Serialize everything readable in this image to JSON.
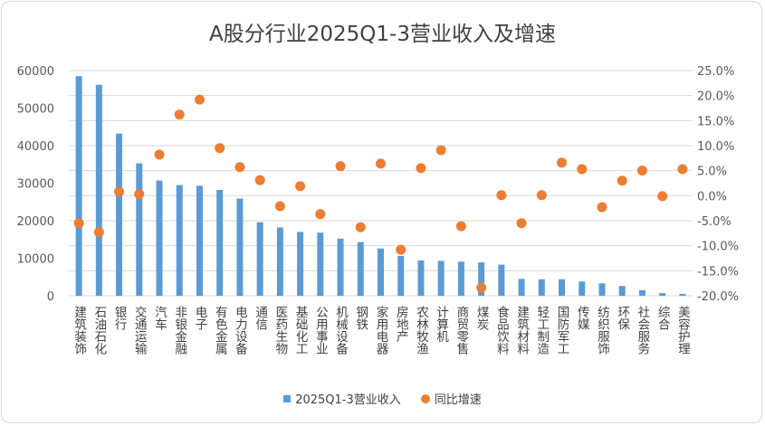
{
  "chart_data": {
    "type": "bar+scatter",
    "title": "A股分行业2025Q1-3营业收入及增速",
    "categories": [
      "建筑装饰",
      "石油石化",
      "银行",
      "交通运输",
      "汽车",
      "非银金融",
      "电子",
      "有色金属",
      "电力设备",
      "通信",
      "医药生物",
      "基础化工",
      "公用事业",
      "机械设备",
      "钢铁",
      "家用电器",
      "房地产",
      "农林牧渔",
      "计算机",
      "商贸零售",
      "煤炭",
      "食品饮料",
      "建筑材料",
      "轻工制造",
      "国防军工",
      "传媒",
      "纺织服饰",
      "环保",
      "社会服务",
      "综合",
      "美容护理"
    ],
    "series": [
      {
        "name": "2025Q1-3营业收入",
        "type": "bar",
        "axis": "left",
        "color": "#5b9bd5",
        "values": [
          58500,
          56200,
          43200,
          35300,
          30700,
          29500,
          29300,
          28200,
          25900,
          19600,
          18200,
          17000,
          16800,
          15200,
          14300,
          12600,
          10600,
          9400,
          9300,
          9100,
          8900,
          8300,
          4500,
          4400,
          4400,
          3800,
          3300,
          2600,
          1500,
          700,
          500
        ]
      },
      {
        "name": "同比增速",
        "type": "scatter",
        "axis": "right",
        "color": "#ed7d31",
        "values": [
          -5.5,
          -7.3,
          0.8,
          0.3,
          8.2,
          16.2,
          19.2,
          9.5,
          5.7,
          3.1,
          -2.1,
          1.9,
          -3.7,
          5.9,
          -6.3,
          6.4,
          -10.8,
          5.5,
          9.1,
          -6.1,
          -18.4,
          0.1,
          -5.5,
          0.1,
          6.6,
          5.3,
          -2.3,
          3.0,
          5.0,
          -0.1,
          5.3
        ]
      }
    ],
    "left_axis": {
      "ylim": [
        0,
        60000
      ],
      "ticks": [
        "0",
        "10000",
        "20000",
        "30000",
        "40000",
        "50000",
        "60000"
      ]
    },
    "right_axis": {
      "ylim": [
        -20,
        25
      ],
      "unit": "%",
      "ticks": [
        "-20.0%",
        "-15.0%",
        "-10.0%",
        "-5.0%",
        "0.0%",
        "5.0%",
        "10.0%",
        "15.0%",
        "20.0%",
        "25.0%"
      ]
    },
    "grid": true,
    "legend_position": "bottom"
  }
}
